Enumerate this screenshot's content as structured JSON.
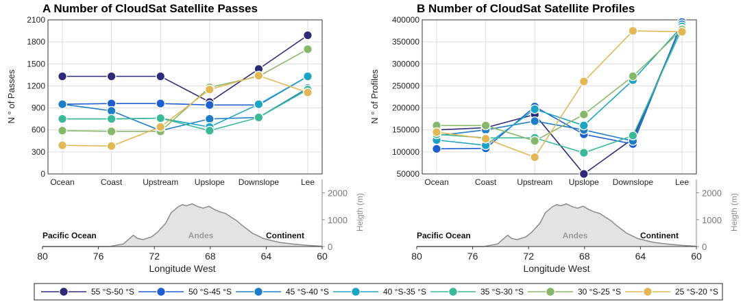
{
  "colors": {
    "series": [
      "#2e2a7a",
      "#1d5fd0",
      "#1f7dc6",
      "#1ca4c4",
      "#3aba98",
      "#86b86a",
      "#e2b857"
    ],
    "terrain_fill": "#e3e3e3",
    "terrain_line": "#8a8a8a",
    "axis": "#333333",
    "grid": "#dcdcdc"
  },
  "legend": {
    "entries": [
      "55 °S-50 °S",
      "50 °S-45 °S",
      "45 °S-40 °S",
      "40 °S-35 °S",
      "35 °S-30 °S",
      "30 °S-25 °S",
      "25 °S-20 °S"
    ]
  },
  "chart_data": [
    {
      "type": "line",
      "title": "A Number of CloudSat Satellite Passes",
      "xlabel": "",
      "ylabel": "N ° of Passes",
      "categories": [
        "Ocean",
        "Coast",
        "Upstream",
        "Upslope",
        "Downslope",
        "Lee"
      ],
      "ylim": [
        0,
        2100
      ],
      "yticks": [
        "0",
        "300",
        "600",
        "900",
        "1200",
        "1500",
        "1800",
        "2100"
      ],
      "grid": true,
      "series": [
        {
          "name": "55 °S-50 °S",
          "values": [
            1330,
            1330,
            1330,
            980,
            1430,
            1890
          ]
        },
        {
          "name": "50 °S-45 °S",
          "values": [
            950,
            960,
            960,
            940,
            940,
            1330
          ]
        },
        {
          "name": "45 °S-40 °S",
          "values": [
            950,
            860,
            590,
            750,
            770,
            1170
          ]
        },
        {
          "name": "40 °S-35 °S",
          "values": [
            750,
            750,
            760,
            640,
            950,
            1330
          ]
        },
        {
          "name": "35 °S-30 °S",
          "values": [
            750,
            750,
            760,
            590,
            770,
            1150
          ]
        },
        {
          "name": "30 °S-25 °S",
          "values": [
            590,
            580,
            580,
            1180,
            1330,
            1700
          ]
        },
        {
          "name": "25 °S-20 °S",
          "values": [
            390,
            380,
            640,
            1150,
            1340,
            1110
          ]
        }
      ]
    },
    {
      "type": "line",
      "title": "B Number of CloudSat Satellite Profiles",
      "xlabel": "",
      "ylabel": "N ° of Profiles",
      "categories": [
        "Ocean",
        "Coast",
        "Upstream",
        "Upslope",
        "Downslope",
        "Lee"
      ],
      "ylim": [
        50000,
        400000
      ],
      "yticks": [
        "50000",
        "100000",
        "150000",
        "200000",
        "250000",
        "300000",
        "350000",
        "400000"
      ],
      "grid": true,
      "series": [
        {
          "name": "55 °S-50 °S",
          "values": [
            150000,
            155000,
            185000,
            50000,
            130000,
            390000
          ]
        },
        {
          "name": "50 °S-45 °S",
          "values": [
            107000,
            108000,
            203000,
            140000,
            118000,
            395000
          ]
        },
        {
          "name": "45 °S-40 °S",
          "values": [
            137000,
            150000,
            170000,
            150000,
            125000,
            390000
          ]
        },
        {
          "name": "40 °S-35 °S",
          "values": [
            127000,
            115000,
            197000,
            160000,
            263000,
            385000
          ]
        },
        {
          "name": "35 °S-30 °S",
          "values": [
            140000,
            132000,
            132000,
            98000,
            137000,
            380000
          ]
        },
        {
          "name": "30 °S-25 °S",
          "values": [
            160000,
            160000,
            125000,
            185000,
            272000,
            378000
          ]
        },
        {
          "name": "25 °S-20 °S",
          "values": [
            145000,
            130000,
            88000,
            260000,
            375000,
            373000
          ]
        }
      ]
    }
  ],
  "terrain": {
    "xlabel": "Longitude West",
    "xticks": [
      "80",
      "76",
      "72",
      "68",
      "64",
      "60"
    ],
    "xlim": [
      80,
      60
    ],
    "right_label": "Heigth (m)",
    "right_ticks": [
      "0",
      "1000",
      "2000"
    ],
    "ylim": [
      0,
      2500
    ],
    "left_region": "Pacific Ocean",
    "center_region": "Andes",
    "right_region": "Continent",
    "profile_lon": [
      80,
      75.2,
      74.8,
      74.2,
      73.9,
      73.5,
      73.2,
      72.8,
      72.2,
      71.8,
      71.2,
      70.8,
      70.3,
      70.0,
      69.7,
      69.3,
      68.9,
      68.5,
      68.1,
      67.7,
      67.3,
      66.9,
      66.5,
      66.1,
      65.8,
      65.4,
      65.0,
      64.6,
      64.2,
      63.6,
      63.0,
      62.0,
      61.0,
      60
    ],
    "profile_h": [
      0,
      0,
      40,
      100,
      240,
      420,
      300,
      260,
      360,
      520,
      860,
      1260,
      1480,
      1560,
      1520,
      1590,
      1490,
      1430,
      1500,
      1380,
      1290,
      1230,
      1090,
      960,
      820,
      660,
      500,
      400,
      300,
      220,
      150,
      90,
      40,
      10
    ]
  }
}
